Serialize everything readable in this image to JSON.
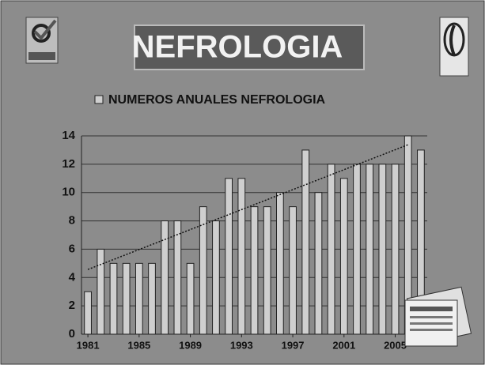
{
  "chart_data": {
    "type": "bar",
    "title": "NEFROLOGIA",
    "x": [
      1981,
      1982,
      1983,
      1984,
      1985,
      1986,
      1987,
      1988,
      1989,
      1990,
      1991,
      1992,
      1993,
      1994,
      1995,
      1996,
      1997,
      1998,
      1999,
      2000,
      2001,
      2002,
      2003,
      2004,
      2005,
      2006,
      2007
    ],
    "series": [
      {
        "name": "NUMEROS ANUALES NEFROLOGIA",
        "color": "#cfcfcf",
        "values": [
          3,
          6,
          5,
          5,
          5,
          5,
          8,
          8,
          5,
          9,
          8,
          11,
          11,
          9,
          9,
          10,
          9,
          13,
          10,
          12,
          11,
          12,
          12,
          12,
          12,
          14,
          13
        ]
      }
    ],
    "xlim": [
      1980.5,
      2007.5
    ],
    "xticks": [
      1981,
      1985,
      1989,
      1993,
      1997,
      2001,
      2005
    ],
    "ylim": [
      0,
      14
    ],
    "yticks": [
      0,
      2,
      4,
      6,
      8,
      10,
      12,
      14
    ],
    "grid": true,
    "trendline": true
  }
}
